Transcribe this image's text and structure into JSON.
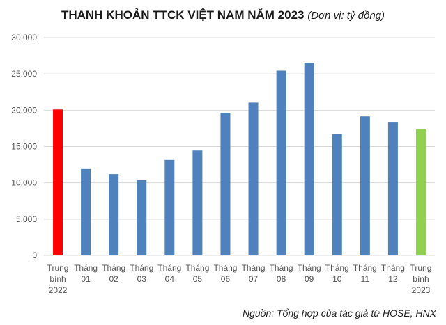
{
  "chart_data": {
    "type": "bar",
    "title": "THANH KHOẢN TTCK VIỆT NAM NĂM 2023",
    "unit": "(Đơn vị: tỷ đồng)",
    "source": "Nguồn: Tổng hợp của tác giả từ HOSE, HNX",
    "ylim": [
      0,
      30000
    ],
    "yticks": [
      "0",
      "5.000",
      "10.000",
      "15.000",
      "20.000",
      "25.000",
      "30.000"
    ],
    "grid": true,
    "categories": [
      [
        "Trung",
        "bình",
        "2022"
      ],
      [
        "Tháng",
        "01"
      ],
      [
        "Tháng",
        "02"
      ],
      [
        "Tháng",
        "03"
      ],
      [
        "Tháng",
        "04"
      ],
      [
        "Tháng",
        "05"
      ],
      [
        "Tháng",
        "06"
      ],
      [
        "Tháng",
        "07"
      ],
      [
        "Tháng",
        "08"
      ],
      [
        "Tháng",
        "09"
      ],
      [
        "Tháng",
        "10"
      ],
      [
        "Tháng",
        "11"
      ],
      [
        "Tháng",
        "12"
      ],
      [
        "Trung",
        "bình",
        "2023"
      ]
    ],
    "values": [
      20100,
      11900,
      11200,
      10350,
      13150,
      14450,
      19650,
      21050,
      25450,
      26550,
      16700,
      19150,
      18300,
      17400
    ],
    "colors": [
      "#ff0000",
      "#4f81bd",
      "#4f81bd",
      "#4f81bd",
      "#4f81bd",
      "#4f81bd",
      "#4f81bd",
      "#4f81bd",
      "#4f81bd",
      "#4f81bd",
      "#4f81bd",
      "#4f81bd",
      "#4f81bd",
      "#92d050"
    ]
  }
}
